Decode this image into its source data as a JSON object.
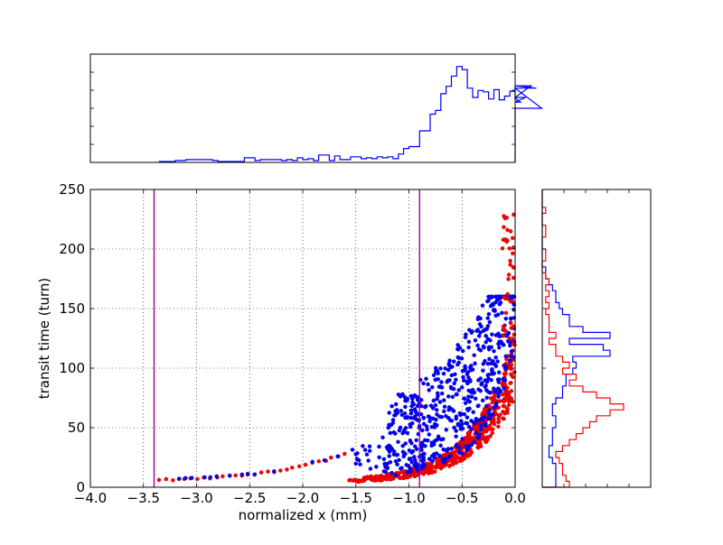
{
  "chart_data": [
    {
      "type": "scatter",
      "xlabel": "normalized x (mm)",
      "ylabel": "transit time (turn)",
      "xlim": [
        -4.0,
        0.0
      ],
      "ylim": [
        0,
        250
      ],
      "xticks": [
        "−4.0",
        "−3.5",
        "−3.0",
        "−2.5",
        "−2.0",
        "−1.5",
        "−1.0",
        "−0.5",
        "0.0"
      ],
      "yticks": [
        "0",
        "50",
        "100",
        "150",
        "200",
        "250"
      ],
      "grid": true,
      "vlines": [
        {
          "x": -3.4,
          "color": "#990099"
        },
        {
          "x": -0.9,
          "color": "#990099"
        }
      ],
      "series": [
        {
          "color": "#0000ff",
          "values": "approx. 600 points: x in [-3.4, 0], transit time rising steeply toward x = 0"
        },
        {
          "color": "#ff0000",
          "values": "approx. 600 points: lower band, same x range"
        }
      ]
    },
    {
      "type": "histogram",
      "orientation": "vertical",
      "axis": "x",
      "color": "#0000ff",
      "xlim": [
        -4.0,
        0.0
      ],
      "bin_width": 0.05,
      "bins_start": -3.35,
      "counts": [
        0.6,
        0.6,
        0.6,
        1.2,
        1.2,
        1.8,
        1.8,
        1.8,
        1.8,
        1.8,
        1.2,
        0.6,
        0.6,
        0.6,
        0.6,
        0.6,
        3.0,
        3.0,
        1.2,
        1.8,
        1.8,
        1.8,
        1.8,
        1.2,
        1.8,
        1.2,
        3.0,
        1.8,
        2.4,
        1.2,
        4.8,
        4.8,
        1.2,
        4.2,
        1.8,
        1.8,
        3.6,
        3.6,
        2.4,
        3.0,
        2.4,
        3.6,
        3.0,
        3.6,
        2.4,
        5.4,
        9.0,
        10.2,
        10.2,
        20.4,
        20.4,
        31.2,
        33.6,
        44.4,
        49.2,
        55.8,
        62.0,
        60.0,
        48.0,
        42.0,
        46.5,
        45.6,
        41.0,
        47.0,
        40.5,
        42.9,
        46.0,
        41.5,
        39.0,
        42.0,
        49.5,
        48.0,
        35.0
      ],
      "ylim": [
        0,
        70
      ]
    },
    {
      "type": "histogram",
      "orientation": "horizontal",
      "axis": "y",
      "ylim": [
        0,
        250
      ],
      "xlim": [
        0,
        32
      ],
      "series": [
        {
          "color": "#0000ff",
          "bin_width": 5,
          "counts": [
            4,
            4,
            4,
            4,
            3,
            2,
            2,
            3,
            3,
            3,
            4,
            4,
            3,
            3,
            4,
            6,
            6,
            7,
            7,
            9,
            10,
            9,
            20,
            18,
            8,
            20,
            12,
            8,
            8,
            6,
            5,
            4,
            4,
            3,
            2,
            1,
            1,
            0,
            0,
            0,
            0,
            0,
            0,
            0,
            0,
            0,
            0,
            0,
            0,
            0
          ]
        },
        {
          "color": "#ff0000",
          "bin_width": 5,
          "counts": [
            8,
            7,
            6,
            6,
            5,
            4,
            6,
            8,
            10,
            12,
            14,
            16,
            20,
            24,
            20,
            16,
            12,
            8,
            10,
            6,
            8,
            6,
            4,
            4,
            2,
            4,
            2,
            2,
            2,
            1,
            2,
            1,
            2,
            1,
            2,
            1,
            0,
            0,
            1,
            1,
            0,
            0,
            1,
            1,
            0,
            0,
            1,
            0,
            0,
            0
          ]
        }
      ]
    }
  ]
}
